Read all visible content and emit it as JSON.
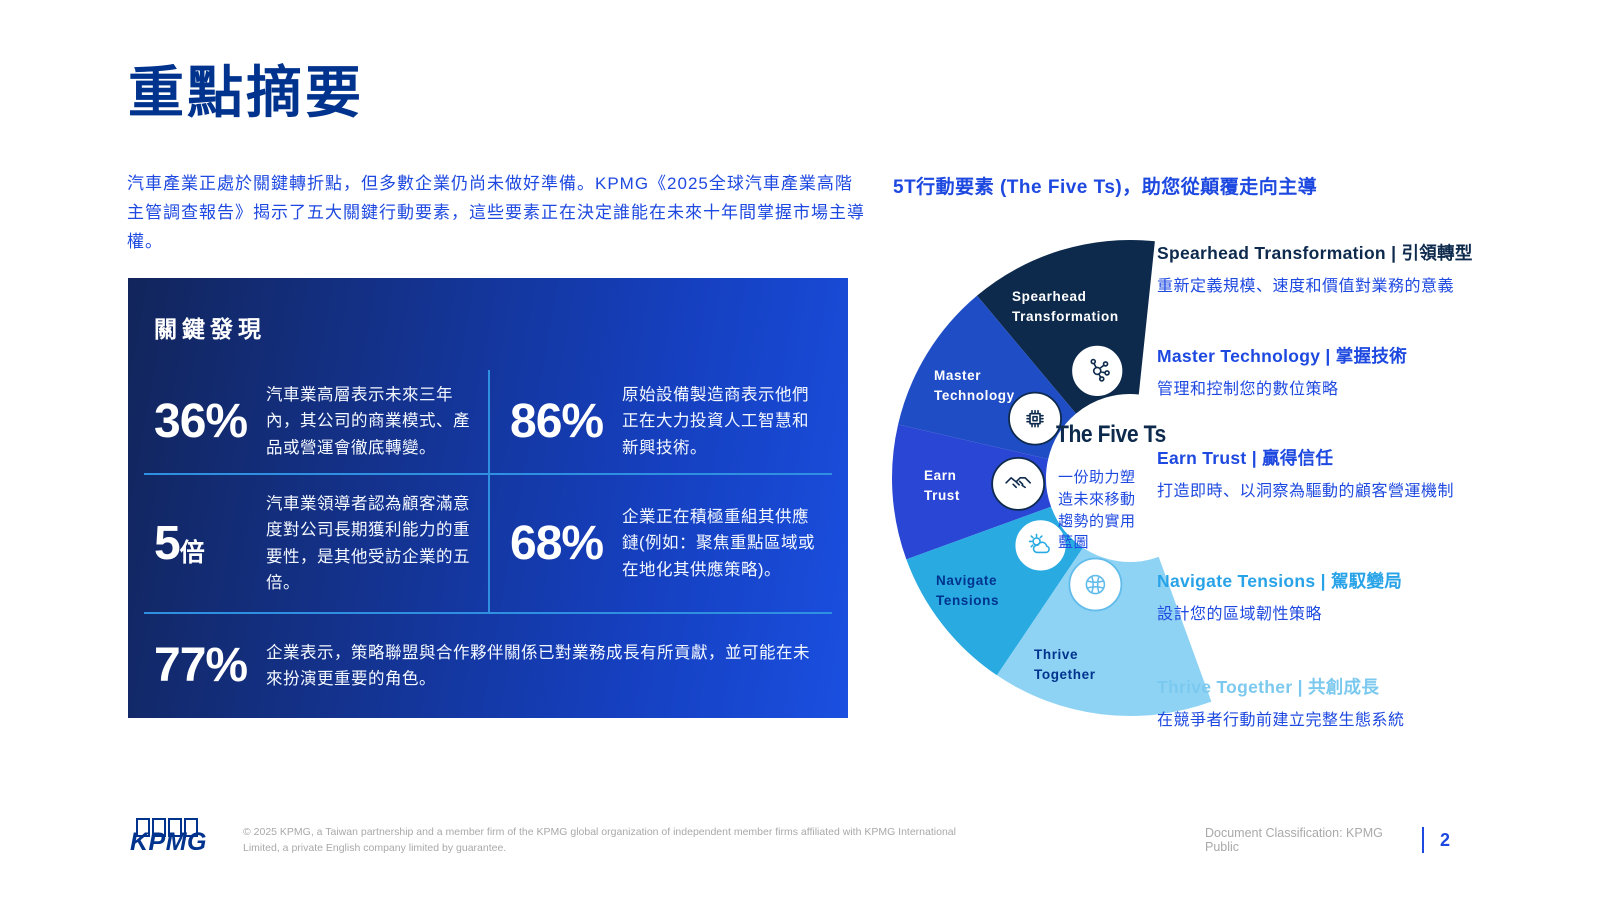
{
  "page": {
    "title": "重點摘要",
    "intro": "汽車產業正處於關鍵轉折點，但多數企業仍尚未做好準備。KPMG《2025全球汽車產業高階主管調查報告》揭示了五大關鍵行動要素，這些要素正在決定誰能在未來十年間掌握市場主導權。"
  },
  "key_findings": {
    "heading": "關鍵發現",
    "stats": [
      {
        "value": "36%",
        "text": "汽車業高層表示未來三年內，其公司的商業模式、產品或營運會徹底轉變。"
      },
      {
        "value": "86%",
        "text": "原始設備製造商表示他們正在大力投資人工智慧和新興技術。"
      },
      {
        "value": "5",
        "suffix": "倍",
        "text": "汽車業領導者認為顧客滿意度對公司長期獲利能力的重要性，是其他受訪企業的五倍。"
      },
      {
        "value": "68%",
        "text": "企業正在積極重組其供應鏈(例如：聚焦重點區域或在地化其供應策略)。"
      },
      {
        "value": "77%",
        "text": "企業表示，策略聯盟與合作夥伴關係已對業務成長有所貢獻，並可能在未來扮演更重要的角色。"
      }
    ]
  },
  "five_ts_section": {
    "heading": "5T行動要素 (The Five Ts)，助您從顛覆走向主導",
    "items": [
      {
        "title": "Spearhead Transformation | 引領轉型",
        "desc": "重新定義規模、速度和價值對業務的意義",
        "color": "#0d2a4d"
      },
      {
        "title": "Master Technology | 掌握技術",
        "desc": "管理和控制您的數位策略",
        "color": "#1e49e0"
      },
      {
        "title": "Earn Trust | 贏得信任",
        "desc": "打造即時、以洞察為驅動的顧客營運機制",
        "color": "#1e49e0"
      },
      {
        "title": "Navigate Tensions | 駕馭變局",
        "desc": "設計您的區域韌性策略",
        "color": "#29a3e8"
      },
      {
        "title": "Thrive Together | 共創成長",
        "desc": "在競爭者行動前建立完整生態系統",
        "color": "#7cc9ef"
      }
    ]
  },
  "diagram": {
    "center_title": "The Five Ts",
    "center_description": "一份助力塑造未來移動趨勢的實用藍圖",
    "segments": [
      {
        "id": "spearhead-transformation",
        "label": "Spearhead Transformation",
        "color": "#0d2a4d",
        "text_color": "#ffffff",
        "icon": "network-icon",
        "icon_color": "#0d2a4d"
      },
      {
        "id": "master-technology",
        "label": "Master Technology",
        "color": "#1f4dc5",
        "text_color": "#ffffff",
        "icon": "head-chip-icon",
        "icon_color": "#0d2a4d"
      },
      {
        "id": "earn-trust",
        "label": "Earn Trust",
        "color": "#2a46d4",
        "text_color": "#ffffff",
        "icon": "handshake-icon",
        "icon_color": "#0d2a4d"
      },
      {
        "id": "navigate-tensions",
        "label": "Navigate Tensions",
        "color": "#29abe2",
        "text_color": "#00338d",
        "icon": "sun-cloud-icon",
        "icon_color": "#29abe2"
      },
      {
        "id": "thrive-together",
        "label": "Thrive Together",
        "color": "#8ed3f4",
        "text_color": "#00338d",
        "icon": "ecosystem-icon",
        "icon_color": "#61bbeb"
      }
    ]
  },
  "footer": {
    "logo_text": "KPMG",
    "copyright": "© 2025 KPMG, a Taiwan partnership and a member firm of the KPMG global organization of independent member firms affiliated with KPMG International Limited, a private English company limited by guarantee.",
    "classification": "Document Classification: KPMG Public",
    "page_number": "2"
  }
}
